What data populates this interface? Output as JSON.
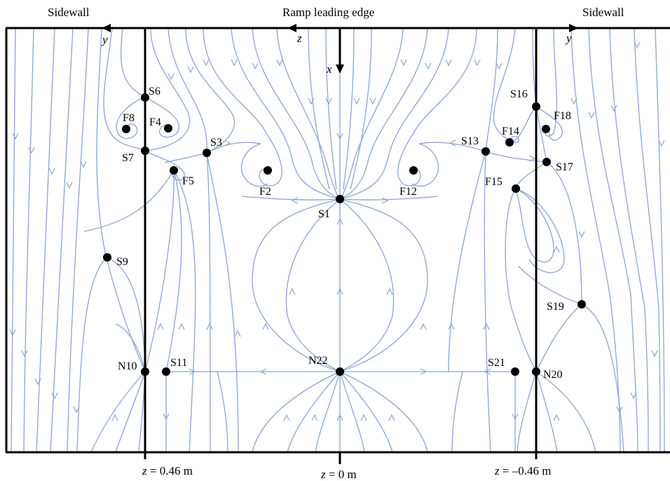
{
  "header": {
    "left_wall": "Sidewall",
    "right_wall": "Sidewall",
    "center": "Ramp leading edge"
  },
  "axes": {
    "y_left": "y",
    "z": "z",
    "x": "x",
    "y_right": "y"
  },
  "footer": {
    "left": {
      "var": "z",
      "rest": " = 0.46 m"
    },
    "center": {
      "var": "z",
      "rest": " = 0 m"
    },
    "right": {
      "var": "z",
      "rest": " = –0.46 m"
    }
  },
  "points": {
    "S1": "S1",
    "F2": "F2",
    "S3": "S3",
    "F4": "F4",
    "F5": "F5",
    "S6": "S6",
    "S7": "S7",
    "F8": "F8",
    "S9": "S9",
    "N10": "N10",
    "S11": "S11",
    "F12": "F12",
    "S13": "S13",
    "F14": "F14",
    "F15": "F15",
    "S16": "S16",
    "S17": "S17",
    "F18": "F18",
    "S19": "S19",
    "N20": "N20",
    "S21": "S21",
    "N22": "N22"
  },
  "colors": {
    "streamline": "#8ea4d2",
    "frame": "#000000"
  }
}
